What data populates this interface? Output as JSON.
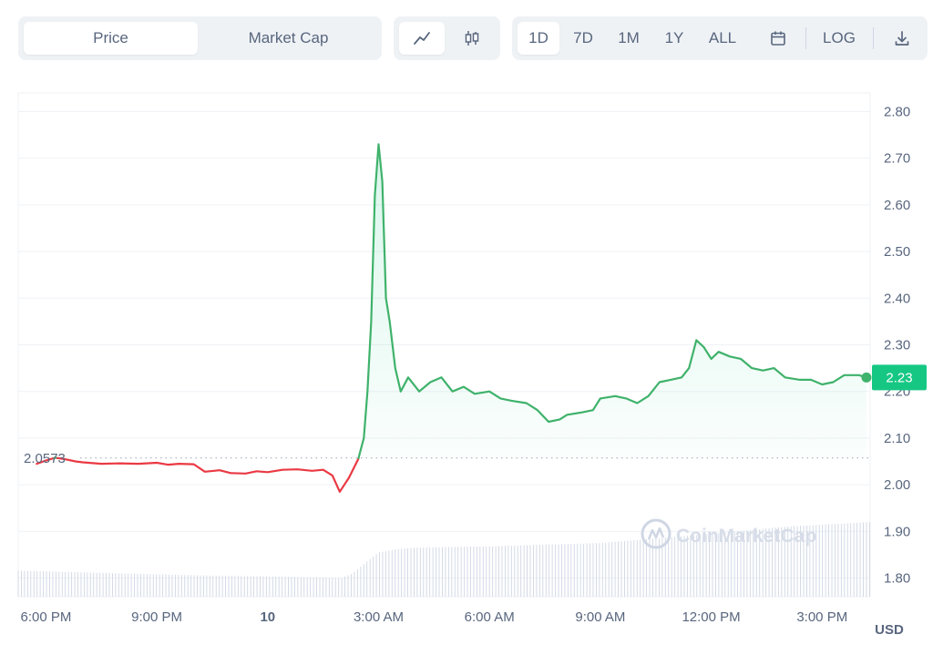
{
  "toolbar": {
    "metric_tabs": [
      {
        "label": "Price",
        "active": true
      },
      {
        "label": "Market Cap",
        "active": false
      }
    ],
    "chart_type_buttons": [
      {
        "icon": "line-chart-icon",
        "active": true
      },
      {
        "icon": "candlestick-icon",
        "active": false
      }
    ],
    "range_buttons": [
      {
        "label": "1D",
        "active": true
      },
      {
        "label": "7D",
        "active": false
      },
      {
        "label": "1M",
        "active": false
      },
      {
        "label": "1Y",
        "active": false
      },
      {
        "label": "ALL",
        "active": false
      }
    ],
    "calendar_icon": "calendar-icon",
    "log_label": "LOG",
    "download_icon": "download-icon"
  },
  "colors": {
    "up": "#16c784",
    "up_line": "#3fb26b",
    "down": "#ea3943",
    "grid": "#eff2f5",
    "volume": "#cfd6e4",
    "axis_text": "#58667e"
  },
  "chart_data": {
    "type": "line",
    "ylabel": "USD",
    "ylim": [
      1.76,
      2.84
    ],
    "y_ticks": [
      "1.80",
      "1.90",
      "2.00",
      "2.10",
      "2.20",
      "2.30",
      "2.40",
      "2.50",
      "2.60",
      "2.70",
      "2.80"
    ],
    "x_ticks": [
      "6:00 PM",
      "9:00 PM",
      "10",
      "3:00 AM",
      "6:00 AM",
      "9:00 AM",
      "12:00 PM",
      "3:00 PM"
    ],
    "x_start_hour": 17.25,
    "x_end_hour": 40.3,
    "reference_price": 2.0573,
    "reference_label": "2.0573",
    "current_price": 2.23,
    "current_label": "2.23",
    "watermark": "CoinMarketCap",
    "price_series": {
      "hours": [
        17.75,
        18.0,
        18.25,
        18.5,
        18.8,
        19.0,
        19.5,
        20.0,
        20.5,
        21.0,
        21.3,
        21.6,
        22.0,
        22.3,
        22.7,
        23.0,
        23.4,
        23.7,
        24.0,
        24.4,
        24.8,
        25.2,
        25.5,
        25.75,
        25.95,
        26.2,
        26.45,
        26.6,
        26.7,
        26.8,
        26.9,
        27.0,
        27.1,
        27.2,
        27.3,
        27.45,
        27.6,
        27.8,
        28.1,
        28.4,
        28.7,
        29.0,
        29.3,
        29.6,
        30.0,
        30.3,
        30.6,
        31.0,
        31.3,
        31.6,
        31.9,
        32.1,
        32.5,
        32.8,
        33.0,
        33.4,
        33.7,
        34.0,
        34.3,
        34.6,
        34.9,
        35.2,
        35.4,
        35.6,
        35.8,
        36.0,
        36.2,
        36.5,
        36.8,
        37.1,
        37.4,
        37.7,
        38.0,
        38.4,
        38.7,
        39.0,
        39.3,
        39.6,
        40.0,
        40.2
      ],
      "prices": [
        2.045,
        2.052,
        2.058,
        2.055,
        2.05,
        2.048,
        2.045,
        2.046,
        2.045,
        2.047,
        2.043,
        2.045,
        2.044,
        2.028,
        2.031,
        2.025,
        2.024,
        2.029,
        2.027,
        2.032,
        2.033,
        2.03,
        2.032,
        2.02,
        1.985,
        2.015,
        2.055,
        2.1,
        2.2,
        2.35,
        2.62,
        2.73,
        2.65,
        2.4,
        2.35,
        2.25,
        2.2,
        2.23,
        2.2,
        2.22,
        2.23,
        2.2,
        2.21,
        2.195,
        2.2,
        2.185,
        2.18,
        2.175,
        2.16,
        2.135,
        2.14,
        2.15,
        2.155,
        2.16,
        2.185,
        2.19,
        2.185,
        2.175,
        2.19,
        2.22,
        2.225,
        2.23,
        2.25,
        2.31,
        2.295,
        2.27,
        2.285,
        2.275,
        2.27,
        2.25,
        2.245,
        2.25,
        2.23,
        2.225,
        2.225,
        2.215,
        2.22,
        2.235,
        2.235,
        2.23
      ]
    },
    "volume_series": {
      "hours": [
        17.25,
        19.0,
        22.0,
        25.0,
        26.0,
        26.3,
        26.6,
        27.0,
        27.5,
        28.0,
        30.0,
        33.0,
        36.0,
        38.0,
        40.3
      ],
      "volumes": [
        1.816,
        1.812,
        1.806,
        1.802,
        1.8,
        1.81,
        1.83,
        1.855,
        1.862,
        1.865,
        1.868,
        1.875,
        1.895,
        1.91,
        1.92
      ]
    }
  }
}
